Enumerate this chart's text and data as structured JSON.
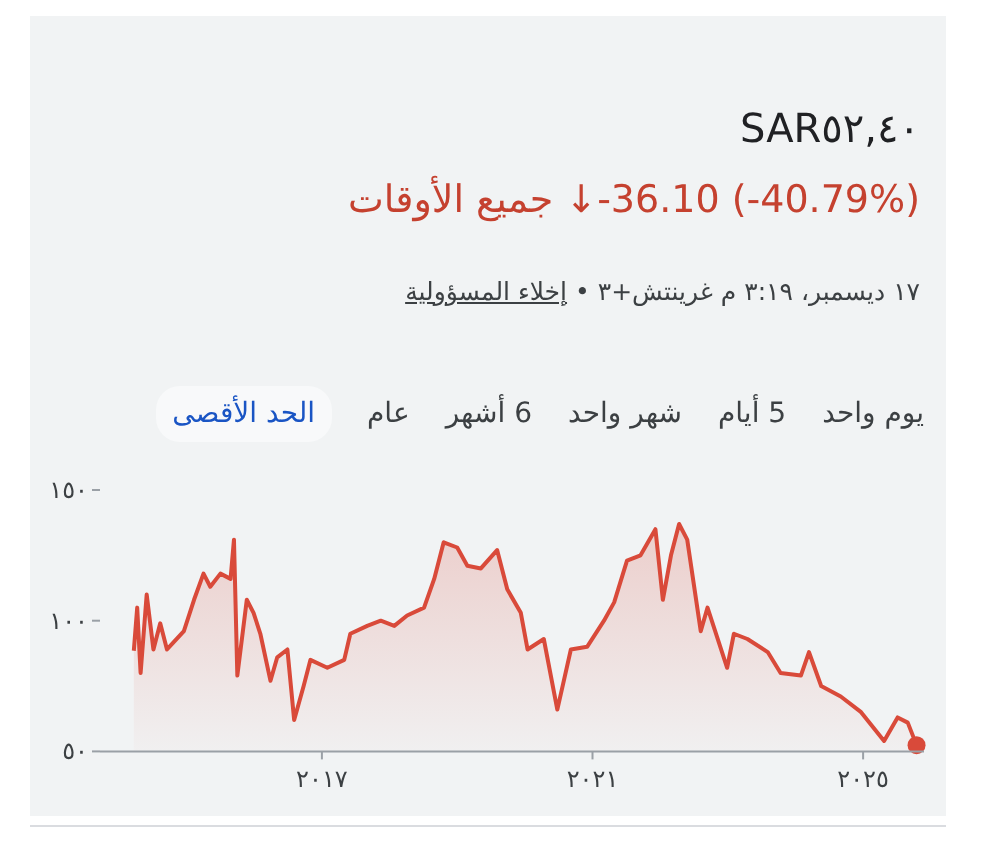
{
  "chart_data": {
    "type": "area",
    "title": "SAR٥٢,٤٠",
    "subtitle": "جميع الأوقات ↓-36.10 (-40.79%)",
    "annotations": [
      "١٧ ديسمبر، ٣:١٩ م غرينتش+٣ •",
      "إخلاء المسؤولية",
      "يوم واحد",
      "5 أيام",
      "شهر واحد",
      "6 أشهر",
      "عام",
      "الحد الأقصى"
    ],
    "x": [
      2014.22,
      2014.27,
      2014.32,
      2014.41,
      2014.51,
      2014.61,
      2014.71,
      2014.96,
      2015.11,
      2015.25,
      2015.35,
      2015.5,
      2015.65,
      2015.7,
      2015.75,
      2015.89,
      2015.99,
      2016.09,
      2016.24,
      2016.34,
      2016.49,
      2016.59,
      2016.73,
      2016.83,
      2017.08,
      2017.33,
      2017.42,
      2017.67,
      2017.87,
      2018.07,
      2018.26,
      2018.51,
      2018.66,
      2018.8,
      2019.0,
      2019.15,
      2019.35,
      2019.59,
      2019.74,
      2019.94,
      2020.04,
      2020.28,
      2020.48,
      2020.68,
      2020.92,
      2021.17,
      2021.32,
      2021.51,
      2021.71,
      2021.93,
      2022.04,
      2022.16,
      2022.28,
      2022.4,
      2022.6,
      2022.7,
      2022.99,
      2023.09,
      2023.29,
      2023.59,
      2023.78,
      2024.08,
      2024.2,
      2024.38,
      2024.67,
      2024.97,
      2025.31,
      2025.51,
      2025.66,
      2025.79
    ],
    "series": [
      {
        "color": "#d94a3a",
        "values": [
          88.5,
          105,
          80,
          110,
          89,
          99,
          89,
          96,
          108,
          118,
          113,
          118,
          116,
          131,
          79,
          108,
          103,
          95,
          77,
          86,
          89,
          62,
          75,
          85,
          82,
          85,
          95,
          98,
          100,
          98,
          102,
          105,
          116,
          130,
          128,
          121,
          120,
          127,
          112,
          103,
          89,
          93,
          66,
          89,
          90,
          100,
          107,
          123,
          125,
          135,
          108,
          125,
          137,
          131,
          96,
          105,
          82,
          95,
          93,
          88,
          80,
          79,
          88,
          75,
          71,
          65,
          54,
          63,
          61,
          52.4
        ]
      }
    ],
    "xlim": [
      2013.72,
      2025.9
    ],
    "xticks": [
      {
        "value": 2017,
        "label": "٢٠١٧"
      },
      {
        "value": 2021,
        "label": "٢٠٢١"
      },
      {
        "value": 2025,
        "label": "٢٠٢٥"
      }
    ],
    "ylim": [
      50,
      150
    ],
    "yticks": [
      {
        "value": 50,
        "label": "٥٠"
      },
      {
        "value": 100,
        "label": "١٠٠"
      },
      {
        "value": 150,
        "label": "١٥٠"
      }
    ],
    "grid": false
  }
}
